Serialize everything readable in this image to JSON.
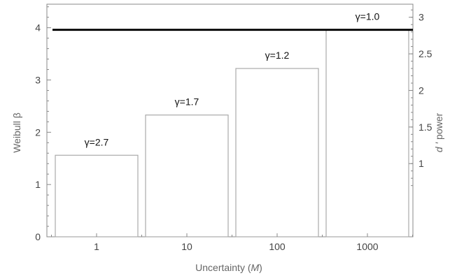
{
  "chart_data": {
    "type": "bar",
    "categories": [
      "1",
      "10",
      "100",
      "1000"
    ],
    "values": [
      1.56,
      2.33,
      3.22,
      3.96
    ],
    "bar_labels": [
      "γ=2.7",
      "γ=1.7",
      "γ=1.2",
      "γ=1.0"
    ],
    "xlabel_prefix": "Uncertainty (",
    "xlabel_var": "M",
    "xlabel_suffix": ")",
    "ylabel": "Weibull β",
    "ylim": [
      0,
      4.45
    ],
    "yticks": [
      0,
      1,
      2,
      3,
      4
    ],
    "y2label_var": "d ′",
    "y2label_suffix": " power",
    "y2_ticks": [
      "1",
      "1.5",
      "2",
      "2.5",
      "3"
    ],
    "y2_tick_values": [
      1,
      1.5,
      2,
      2.5,
      3
    ],
    "y2_scale": 1.4,
    "reference_line": 3.96,
    "grid": false,
    "colors": {
      "bar_stroke": "#aaaaaa",
      "bar_fill": "#ffffff",
      "axis": "#888888",
      "reference_line": "#000000"
    }
  }
}
